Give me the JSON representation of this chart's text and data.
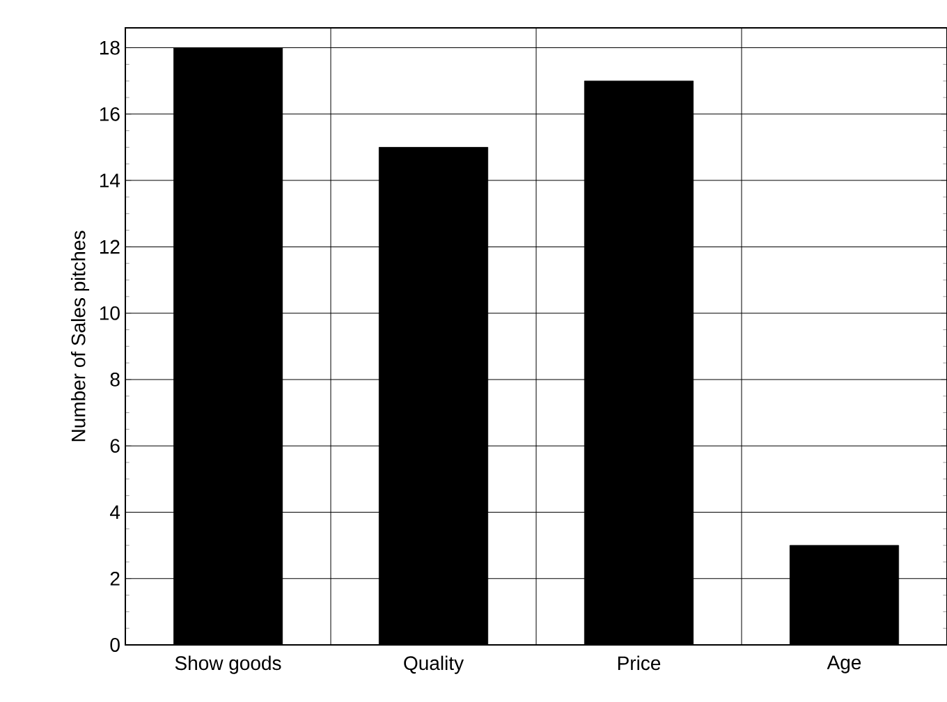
{
  "chart_data": {
    "type": "bar",
    "ylabel": "Number of Sales pitches",
    "categories": [
      "Show goods",
      "Quality",
      "Price",
      "Age"
    ],
    "values": [
      18,
      15,
      17,
      3
    ],
    "color": "#000000",
    "ylim": [
      0,
      18.6
    ],
    "yticks": [
      0,
      2,
      4,
      6,
      8,
      10,
      12,
      14,
      16,
      18
    ],
    "grid": true
  }
}
